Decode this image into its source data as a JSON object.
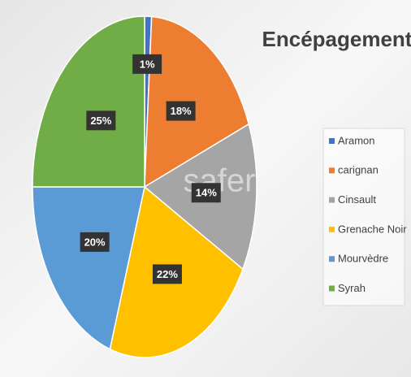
{
  "chart_data": {
    "type": "pie",
    "title": "Encépagement",
    "watermark": "safer",
    "categories": [
      "Aramon",
      "carignan",
      "Cinsault",
      "Grenache Noir",
      "Mourvèdre",
      "Syrah"
    ],
    "values": [
      1,
      18,
      14,
      22,
      20,
      25
    ],
    "value_labels": [
      "1%",
      "18%",
      "14%",
      "22%",
      "20%",
      "25%"
    ],
    "colors": [
      "#4472c4",
      "#ed7d31",
      "#a5a5a5",
      "#ffc000",
      "#5b9bd5",
      "#70ad47"
    ],
    "legend": "right"
  }
}
